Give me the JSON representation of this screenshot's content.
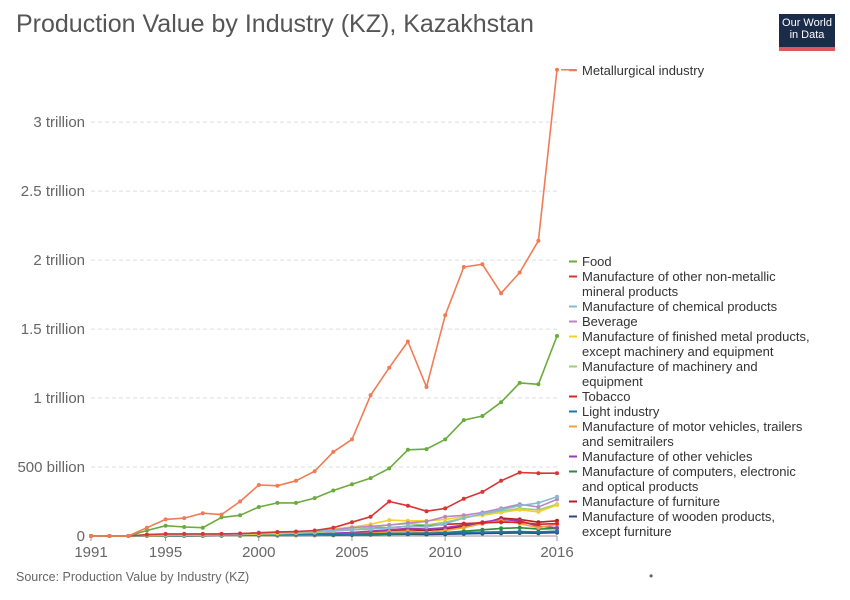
{
  "header": {
    "title": "Production Value by Industry (KZ), Kazakhstan",
    "logo_line1": "Our World",
    "logo_line2": "in Data"
  },
  "footer": {
    "source": "Source: Production Value by Industry (KZ)",
    "dot": "•"
  },
  "chart_data": {
    "type": "line",
    "title": "Production Value by Industry (KZ), Kazakhstan",
    "x": [
      1991,
      1992,
      1993,
      1994,
      1995,
      1996,
      1997,
      1998,
      1999,
      2000,
      2001,
      2002,
      2003,
      2004,
      2005,
      2006,
      2007,
      2008,
      2009,
      2010,
      2011,
      2012,
      2013,
      2014,
      2015,
      2016
    ],
    "xlim": [
      1991,
      2016
    ],
    "ylim": [
      0,
      3400000000000
    ],
    "x_ticks": [
      1991,
      1995,
      2000,
      2005,
      2010,
      2016
    ],
    "y_ticks": [
      {
        "value": 0,
        "label": "0"
      },
      {
        "value": 500000000000,
        "label": "500 billion"
      },
      {
        "value": 1000000000000,
        "label": "1 trillion"
      },
      {
        "value": 1500000000000,
        "label": "1.5 trillion"
      },
      {
        "value": 2000000000000,
        "label": "2 trillion"
      },
      {
        "value": 2500000000000,
        "label": "2.5 trillion"
      },
      {
        "value": 3000000000000,
        "label": "3 trillion"
      }
    ],
    "grid": true,
    "legend_position": "right",
    "series": [
      {
        "name": "Metallurgical industry",
        "color": "#f07c55",
        "values": [
          0,
          0,
          0,
          60000000000.0,
          120000000000.0,
          130000000000.0,
          165000000000.0,
          155000000000.0,
          250000000000.0,
          370000000000.0,
          365000000000.0,
          400000000000.0,
          470000000000.0,
          610000000000.0,
          700000000000.0,
          1020000000000.0,
          1220000000000.0,
          1410000000000.0,
          1080000000000.0,
          1600000000000.0,
          1950000000000.0,
          1970000000000.0,
          1760000000000.0,
          1910000000000.0,
          2140000000000.0,
          3380000000000.0
        ]
      },
      {
        "name": "Food",
        "color": "#6aab3b",
        "values": [
          0,
          0,
          0,
          40000000000.0,
          75000000000.0,
          65000000000.0,
          60000000000.0,
          135000000000.0,
          150000000000.0,
          210000000000.0,
          240000000000.0,
          240000000000.0,
          275000000000.0,
          330000000000.0,
          375000000000.0,
          420000000000.0,
          490000000000.0,
          625000000000.0,
          630000000000.0,
          700000000000.0,
          840000000000.0,
          870000000000.0,
          970000000000.0,
          1110000000000.0,
          1100000000000.0,
          1450000000000.0
        ]
      },
      {
        "name": "Manufacture of other non-metallic mineral products",
        "color": "#d93535",
        "values": [
          0,
          0,
          0,
          10000000000.0,
          15000000000.0,
          15000000000.0,
          15000000000.0,
          15000000000.0,
          18000000000.0,
          22000000000.0,
          28000000000.0,
          32000000000.0,
          40000000000.0,
          60000000000.0,
          100000000000.0,
          140000000000.0,
          250000000000.0,
          220000000000.0,
          180000000000.0,
          200000000000.0,
          270000000000.0,
          320000000000.0,
          400000000000.0,
          460000000000.0,
          455000000000.0,
          455000000000.0
        ]
      },
      {
        "name": "Manufacture of chemical products",
        "color": "#88bbd0",
        "values": [
          0,
          0,
          0,
          5000000000.0,
          8000000000.0,
          8000000000.0,
          10000000000.0,
          10000000000.0,
          12000000000.0,
          25000000000.0,
          30000000000.0,
          32000000000.0,
          35000000000.0,
          40000000000.0,
          45000000000.0,
          50000000000.0,
          60000000000.0,
          70000000000.0,
          65000000000.0,
          90000000000.0,
          130000000000.0,
          160000000000.0,
          190000000000.0,
          220000000000.0,
          240000000000.0,
          285000000000.0
        ]
      },
      {
        "name": "Beverage",
        "color": "#b987c4",
        "values": [
          0,
          0,
          0,
          5000000000.0,
          8000000000.0,
          8000000000.0,
          10000000000.0,
          12000000000.0,
          15000000000.0,
          25000000000.0,
          28000000000.0,
          30000000000.0,
          35000000000.0,
          45000000000.0,
          60000000000.0,
          70000000000.0,
          80000000000.0,
          95000000000.0,
          105000000000.0,
          140000000000.0,
          150000000000.0,
          170000000000.0,
          200000000000.0,
          230000000000.0,
          210000000000.0,
          265000000000.0
        ]
      },
      {
        "name": "Manufacture of finished metal products, except machinery and equipment",
        "color": "#f2d02f",
        "values": [
          0,
          0,
          0,
          3000000000.0,
          5000000000.0,
          6000000000.0,
          8000000000.0,
          9000000000.0,
          12000000000.0,
          18000000000.0,
          22000000000.0,
          28000000000.0,
          38000000000.0,
          50000000000.0,
          65000000000.0,
          85000000000.0,
          115000000000.0,
          110000000000.0,
          110000000000.0,
          120000000000.0,
          140000000000.0,
          150000000000.0,
          170000000000.0,
          190000000000.0,
          175000000000.0,
          225000000000.0
        ]
      },
      {
        "name": "Manufacture of machinery and equipment",
        "color": "#9bcf74",
        "values": [
          0,
          0,
          0,
          4000000000.0,
          6000000000.0,
          6000000000.0,
          8000000000.0,
          9000000000.0,
          10000000000.0,
          14000000000.0,
          16000000000.0,
          20000000000.0,
          25000000000.0,
          35000000000.0,
          45000000000.0,
          60000000000.0,
          80000000000.0,
          90000000000.0,
          80000000000.0,
          100000000000.0,
          130000000000.0,
          160000000000.0,
          180000000000.0,
          200000000000.0,
          190000000000.0,
          230000000000.0
        ]
      },
      {
        "name": "Tobacco",
        "color": "#d62728",
        "values": [
          0,
          0,
          0,
          5000000000.0,
          10000000000.0,
          10000000000.0,
          12000000000.0,
          13000000000.0,
          15000000000.0,
          20000000000.0,
          25000000000.0,
          28000000000.0,
          32000000000.0,
          38000000000.0,
          45000000000.0,
          55000000000.0,
          60000000000.0,
          70000000000.0,
          75000000000.0,
          85000000000.0,
          90000000000.0,
          95000000000.0,
          100000000000.0,
          100000000000.0,
          85000000000.0,
          90000000000.0
        ]
      },
      {
        "name": "Light industry",
        "color": "#1f77a4",
        "values": [
          0,
          0,
          0,
          2000000000.0,
          3000000000.0,
          3000000000.0,
          4000000000.0,
          4000000000.0,
          5000000000.0,
          7000000000.0,
          8000000000.0,
          9000000000.0,
          10000000000.0,
          12000000000.0,
          14000000000.0,
          16000000000.0,
          18000000000.0,
          20000000000.0,
          20000000000.0,
          22000000000.0,
          25000000000.0,
          28000000000.0,
          30000000000.0,
          32000000000.0,
          30000000000.0,
          35000000000.0
        ]
      },
      {
        "name": "Manufacture of motor vehicles, trailers and semitrailers",
        "color": "#f4a03a",
        "values": [
          0,
          0,
          0,
          1000000000.0,
          2000000000.0,
          2000000000.0,
          2000000000.0,
          3000000000.0,
          3000000000.0,
          4000000000.0,
          5000000000.0,
          6000000000.0,
          8000000000.0,
          12000000000.0,
          15000000000.0,
          20000000000.0,
          30000000000.0,
          35000000000.0,
          25000000000.0,
          40000000000.0,
          60000000000.0,
          90000000000.0,
          110000000000.0,
          90000000000.0,
          60000000000.0,
          85000000000.0
        ]
      },
      {
        "name": "Manufacture of other vehicles",
        "color": "#9b3db0",
        "values": [
          0,
          0,
          0,
          2000000000.0,
          3000000000.0,
          3000000000.0,
          4000000000.0,
          4000000000.0,
          5000000000.0,
          6000000000.0,
          8000000000.0,
          10000000000.0,
          15000000000.0,
          20000000000.0,
          25000000000.0,
          35000000000.0,
          45000000000.0,
          55000000000.0,
          50000000000.0,
          60000000000.0,
          80000000000.0,
          100000000000.0,
          120000000000.0,
          110000000000.0,
          70000000000.0,
          60000000000.0
        ]
      },
      {
        "name": "Manufacture of computers, electronic and optical products",
        "color": "#2e8b3b",
        "values": [
          0,
          0,
          0,
          1000000000.0,
          1000000000.0,
          1000000000.0,
          2000000000.0,
          2000000000.0,
          2000000000.0,
          3000000000.0,
          4000000000.0,
          5000000000.0,
          6000000000.0,
          8000000000.0,
          10000000000.0,
          12000000000.0,
          15000000000.0,
          18000000000.0,
          20000000000.0,
          25000000000.0,
          35000000000.0,
          45000000000.0,
          55000000000.0,
          60000000000.0,
          50000000000.0,
          55000000000.0
        ]
      },
      {
        "name": "Manufacture of furniture",
        "color": "#b22222",
        "values": [
          0,
          0,
          0,
          1000000000.0,
          2000000000.0,
          2000000000.0,
          2000000000.0,
          3000000000.0,
          3000000000.0,
          5000000000.0,
          6000000000.0,
          8000000000.0,
          10000000000.0,
          15000000000.0,
          20000000000.0,
          25000000000.0,
          35000000000.0,
          45000000000.0,
          40000000000.0,
          50000000000.0,
          70000000000.0,
          90000000000.0,
          130000000000.0,
          120000000000.0,
          100000000000.0,
          110000000000.0
        ]
      },
      {
        "name": "Manufacture of wooden products, except furniture",
        "color": "#2c4a7c",
        "values": [
          0,
          0,
          0,
          1000000000.0,
          1000000000.0,
          1000000000.0,
          1000000000.0,
          2000000000.0,
          2000000000.0,
          3000000000.0,
          3000000000.0,
          4000000000.0,
          5000000000.0,
          6000000000.0,
          7000000000.0,
          9000000000.0,
          11000000000.0,
          12000000000.0,
          11000000000.0,
          13000000000.0,
          16000000000.0,
          18000000000.0,
          20000000000.0,
          22000000000.0,
          20000000000.0,
          25000000000.0
        ]
      }
    ],
    "legend": [
      {
        "series": 0,
        "lines": [
          "Metallurgical industry"
        ]
      },
      {
        "series": 1,
        "lines": [
          "Food"
        ]
      },
      {
        "series": 2,
        "lines": [
          "Manufacture of other non-metallic",
          "mineral products"
        ]
      },
      {
        "series": 3,
        "lines": [
          "Manufacture of chemical products"
        ]
      },
      {
        "series": 4,
        "lines": [
          "Beverage"
        ]
      },
      {
        "series": 5,
        "lines": [
          "Manufacture of finished metal products,",
          "except machinery and equipment"
        ]
      },
      {
        "series": 6,
        "lines": [
          "Manufacture of machinery and",
          "equipment"
        ]
      },
      {
        "series": 7,
        "lines": [
          "Tobacco"
        ]
      },
      {
        "series": 8,
        "lines": [
          "Light industry"
        ]
      },
      {
        "series": 9,
        "lines": [
          "Manufacture of motor vehicles, trailers",
          "and semitrailers"
        ]
      },
      {
        "series": 10,
        "lines": [
          "Manufacture of other vehicles"
        ]
      },
      {
        "series": 11,
        "lines": [
          "Manufacture of computers, electronic",
          "and optical products"
        ]
      },
      {
        "series": 12,
        "lines": [
          "Manufacture of furniture"
        ]
      },
      {
        "series": 13,
        "lines": [
          "Manufacture of wooden products,",
          "except furniture"
        ]
      }
    ]
  }
}
